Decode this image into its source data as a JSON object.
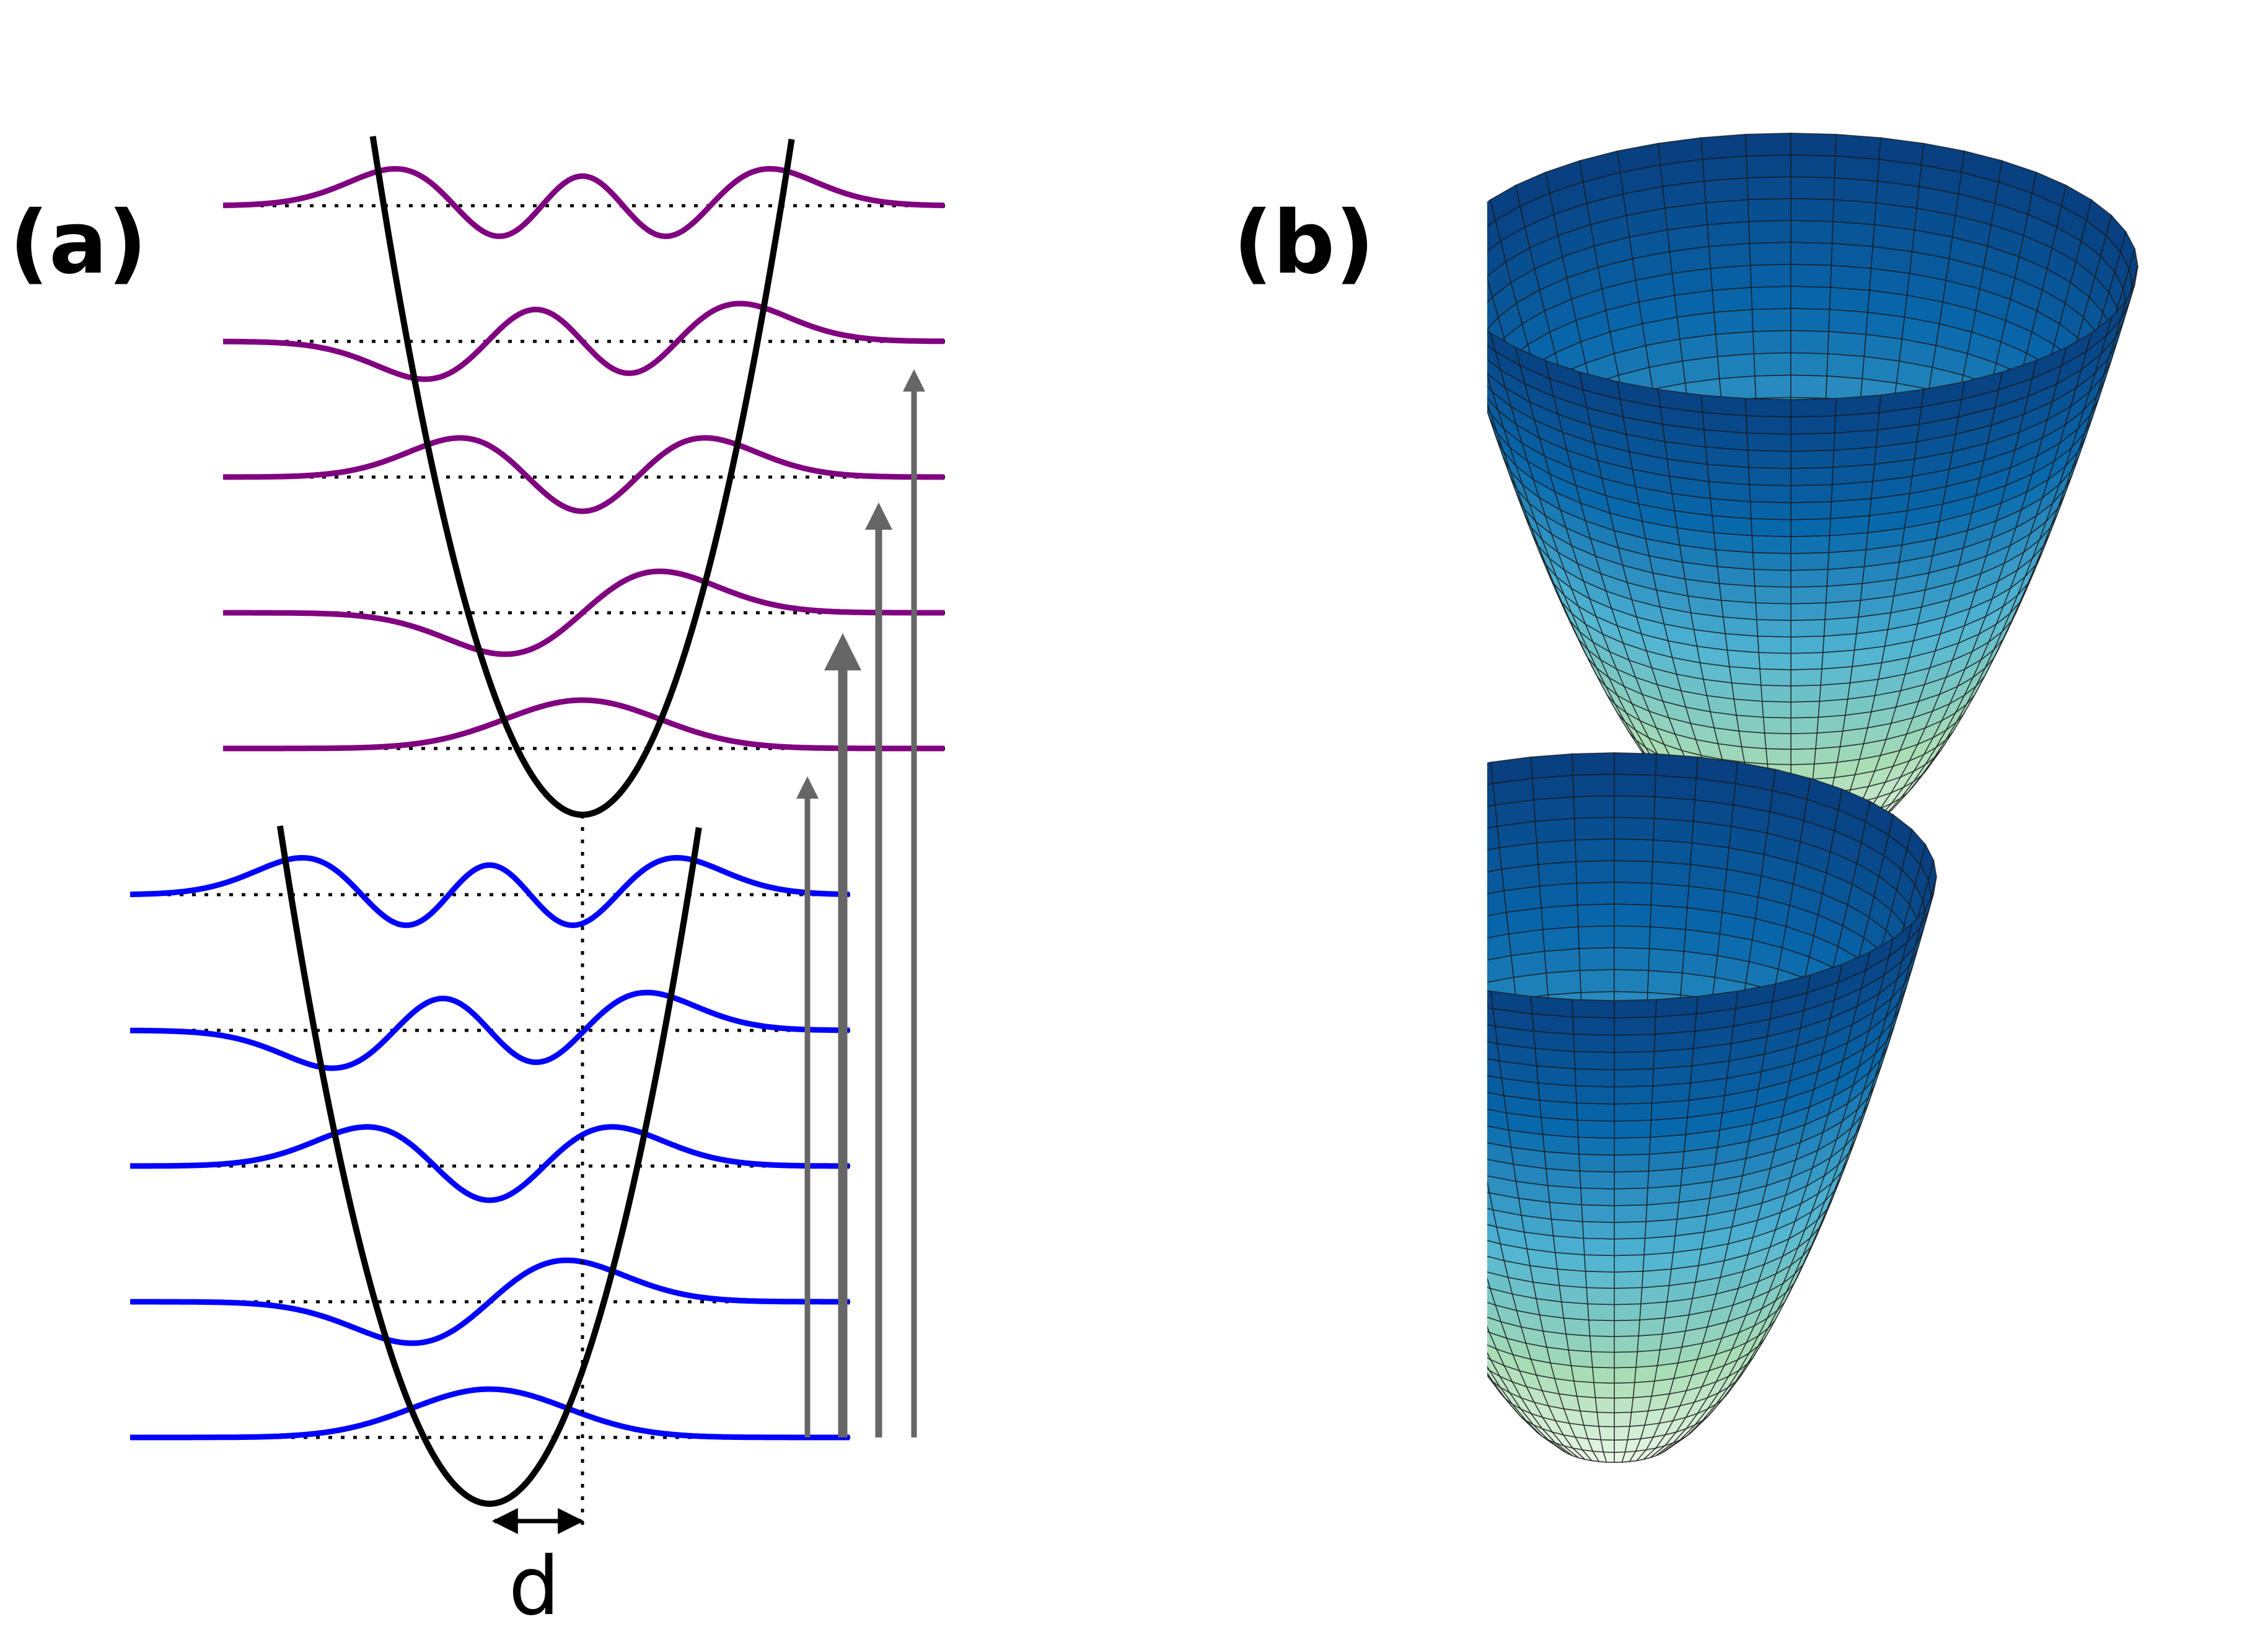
{
  "panel_a": {
    "label": "(a)",
    "shift_label": "d",
    "upper_well": {
      "curve_color": "#800080",
      "levels": [
        0,
        1,
        2,
        3,
        4
      ]
    },
    "lower_well": {
      "curve_color": "#0000ff",
      "levels": [
        0,
        1,
        2,
        3,
        4
      ]
    },
    "potential_color": "#000000",
    "transition_arrows": [
      {
        "from": "lower-0",
        "to": "upper-0",
        "thickness": "thin"
      },
      {
        "from": "lower-0",
        "to": "upper-1",
        "thickness": "thick"
      },
      {
        "from": "lower-0",
        "to": "upper-2",
        "thickness": "medium"
      },
      {
        "from": "lower-0",
        "to": "upper-3",
        "thickness": "thin"
      }
    ],
    "arrow_color": "#666666"
  },
  "panel_b": {
    "label": "(b)",
    "surfaces": [
      "upper-paraboloid",
      "lower-paraboloid"
    ],
    "colormap": [
      "#f7fcf0",
      "#a8ddb5",
      "#4eb3d3",
      "#0868ac",
      "#084081"
    ],
    "mesh_color": "#1a1a1a"
  }
}
